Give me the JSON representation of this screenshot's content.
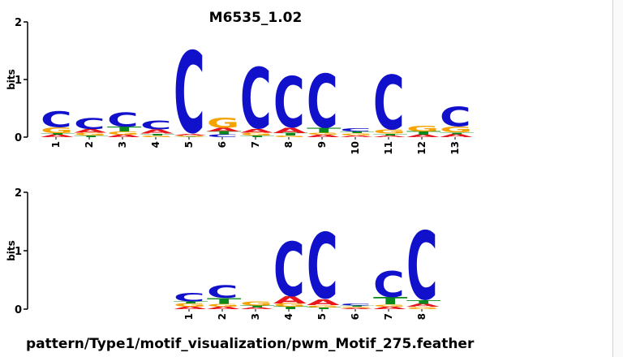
{
  "colors": {
    "A": "#e8161c",
    "C": "#1111cc",
    "G": "#f5a300",
    "T": "#0a8a1a",
    "axis": "#000000"
  },
  "chart_data": [
    {
      "type": "sequence-logo",
      "title": "M6535_1.02",
      "ylabel": "bits",
      "ylim": [
        0,
        2
      ],
      "yticks": [
        "0",
        "1",
        "2"
      ],
      "positions": [
        "1",
        "2",
        "3",
        "4",
        "5",
        "6",
        "7",
        "8",
        "9",
        "10",
        "11",
        "12",
        "13"
      ],
      "stacks": [
        [
          [
            "A",
            0.04
          ],
          [
            "T",
            0.03
          ],
          [
            "G",
            0.1
          ],
          [
            "C",
            0.28
          ]
        ],
        [
          [
            "T",
            0.03
          ],
          [
            "G",
            0.05
          ],
          [
            "A",
            0.06
          ],
          [
            "C",
            0.2
          ]
        ],
        [
          [
            "A",
            0.04
          ],
          [
            "G",
            0.06
          ],
          [
            "T",
            0.08
          ],
          [
            "C",
            0.25
          ]
        ],
        [
          [
            "G",
            0.03
          ],
          [
            "T",
            0.03
          ],
          [
            "A",
            0.07
          ],
          [
            "C",
            0.16
          ]
        ],
        [
          [
            "T",
            0.01
          ],
          [
            "G",
            0.02
          ],
          [
            "A",
            0.03
          ],
          [
            "C",
            1.45
          ]
        ],
        [
          [
            "C",
            0.05
          ],
          [
            "T",
            0.05
          ],
          [
            "A",
            0.06
          ],
          [
            "G",
            0.18
          ]
        ],
        [
          [
            "T",
            0.03
          ],
          [
            "G",
            0.05
          ],
          [
            "A",
            0.06
          ],
          [
            "C",
            1.08
          ]
        ],
        [
          [
            "G",
            0.03
          ],
          [
            "T",
            0.04
          ],
          [
            "A",
            0.09
          ],
          [
            "C",
            0.9
          ]
        ],
        [
          [
            "A",
            0.04
          ],
          [
            "G",
            0.04
          ],
          [
            "T",
            0.08
          ],
          [
            "C",
            0.95
          ]
        ],
        [
          [
            "A",
            0.03
          ],
          [
            "G",
            0.04
          ],
          [
            "T",
            0.03
          ],
          [
            "C",
            0.06
          ]
        ],
        [
          [
            "A",
            0.03
          ],
          [
            "T",
            0.03
          ],
          [
            "G",
            0.07
          ],
          [
            "C",
            0.96
          ]
        ],
        [
          [
            "A",
            0.04
          ],
          [
            "T",
            0.06
          ],
          [
            "G",
            0.1
          ]
        ],
        [
          [
            "A",
            0.05
          ],
          [
            "T",
            0.03
          ],
          [
            "G",
            0.1
          ],
          [
            "C",
            0.35
          ]
        ]
      ]
    },
    {
      "type": "sequence-logo",
      "title": "",
      "ylabel": "bits",
      "ylim": [
        0,
        2
      ],
      "yticks": [
        "0",
        "1",
        "2"
      ],
      "positions": [
        "1",
        "2",
        "3",
        "4",
        "5",
        "6",
        "7",
        "8"
      ],
      "stacks": [
        [
          [
            "A",
            0.04
          ],
          [
            "G",
            0.06
          ],
          [
            "T",
            0.03
          ],
          [
            "C",
            0.15
          ]
        ],
        [
          [
            "A",
            0.04
          ],
          [
            "G",
            0.05
          ],
          [
            "T",
            0.1
          ],
          [
            "C",
            0.22
          ]
        ],
        [
          [
            "A",
            0.03
          ],
          [
            "T",
            0.03
          ],
          [
            "G",
            0.07
          ]
        ],
        [
          [
            "T",
            0.04
          ],
          [
            "G",
            0.06
          ],
          [
            "A",
            0.12
          ],
          [
            "C",
            0.95
          ]
        ],
        [
          [
            "T",
            0.03
          ],
          [
            "G",
            0.04
          ],
          [
            "A",
            0.1
          ],
          [
            "C",
            1.15
          ]
        ],
        [
          [
            "A",
            0.02
          ],
          [
            "G",
            0.02
          ],
          [
            "T",
            0.02
          ],
          [
            "C",
            0.04
          ]
        ],
        [
          [
            "A",
            0.04
          ],
          [
            "G",
            0.04
          ],
          [
            "T",
            0.12
          ],
          [
            "C",
            0.45
          ]
        ],
        [
          [
            "G",
            0.04
          ],
          [
            "A",
            0.05
          ],
          [
            "T",
            0.06
          ],
          [
            "C",
            1.2
          ]
        ]
      ]
    }
  ],
  "footer": {
    "path": "pattern/Type1/motif_visualization/pwm_Motif_275.feather"
  }
}
